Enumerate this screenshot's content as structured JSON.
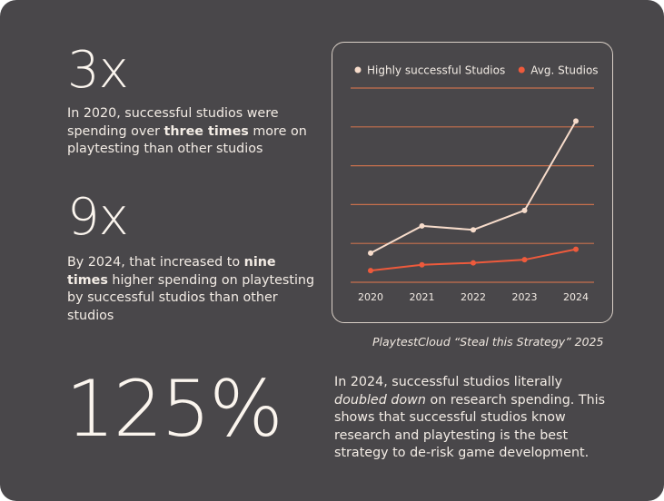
{
  "stats": [
    {
      "value": "3x",
      "text_parts": [
        {
          "text": "In 2020, successful studios were spending over ",
          "style": "normal"
        },
        {
          "text": "three times",
          "style": "bold"
        },
        {
          "text": " more on playtesting than other studios",
          "style": "normal"
        }
      ]
    },
    {
      "value": "9x",
      "text_parts": [
        {
          "text": "By 2024, that increased to ",
          "style": "normal"
        },
        {
          "text": "nine times",
          "style": "bold"
        },
        {
          "text": " higher spending on playtesting by successful studios than other studios",
          "style": "normal"
        }
      ]
    },
    {
      "value": "125%",
      "text_parts": [
        {
          "text": "In 2024, successful studios literally ",
          "style": "normal"
        },
        {
          "text": "doubled down",
          "style": "italic"
        },
        {
          "text": " on research spending. This shows that successful studios know research and playtesting is the best strategy to de-risk game development.",
          "style": "normal"
        }
      ]
    }
  ],
  "source_caption": "PlaytestCloud “Steal this Strategy” 2025",
  "colors": {
    "background": "#49474a",
    "highly_successful": "#f7dccb",
    "avg": "#ee5a3c",
    "gridline": "#c8704d",
    "text": "#f3ece5"
  },
  "chart_data": {
    "type": "line",
    "x": [
      "2020",
      "2021",
      "2022",
      "2023",
      "2024"
    ],
    "series": [
      {
        "name": "Highly successful Studios",
        "color": "#f7dccb",
        "values": [
          0.75,
          1.45,
          1.35,
          1.85,
          4.15
        ]
      },
      {
        "name": "Avg. Studios",
        "color": "#ee5a3c",
        "values": [
          0.3,
          0.45,
          0.5,
          0.58,
          0.85
        ]
      }
    ],
    "ylim": [
      0,
      5
    ],
    "grid": true,
    "legend": "top",
    "title": "",
    "xlabel": "",
    "ylabel": ""
  }
}
